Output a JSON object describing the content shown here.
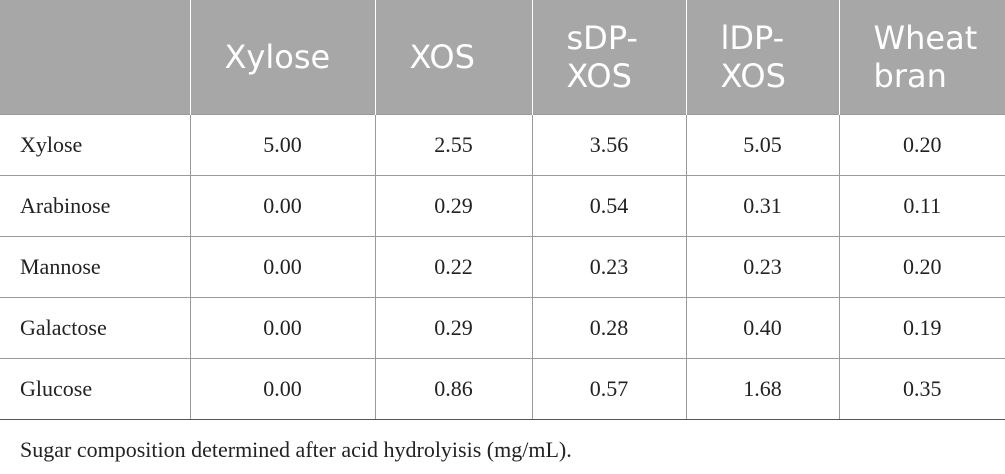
{
  "table": {
    "headers": [
      "",
      "Xylose",
      "XOS",
      "sDP-XOS",
      "lDP-XOS",
      "Wheat bran"
    ],
    "rows": [
      {
        "label": "Xylose",
        "values": [
          "5.00",
          "2.55",
          "3.56",
          "5.05",
          "0.20"
        ]
      },
      {
        "label": "Arabinose",
        "values": [
          "0.00",
          "0.29",
          "0.54",
          "0.31",
          "0.11"
        ]
      },
      {
        "label": "Mannose",
        "values": [
          "0.00",
          "0.22",
          "0.23",
          "0.23",
          "0.20"
        ]
      },
      {
        "label": "Galactose",
        "values": [
          "0.00",
          "0.29",
          "0.28",
          "0.40",
          "0.19"
        ]
      },
      {
        "label": "Glucose",
        "values": [
          "0.00",
          "0.86",
          "0.57",
          "1.68",
          "0.35"
        ]
      }
    ]
  },
  "caption": "Sugar composition determined after acid hydrolyisis (mg/mL).",
  "colors": {
    "header_bg": "#a7a7a7",
    "header_text": "#ffffff",
    "body_text": "#222222",
    "rule": "#9a9a9a"
  }
}
